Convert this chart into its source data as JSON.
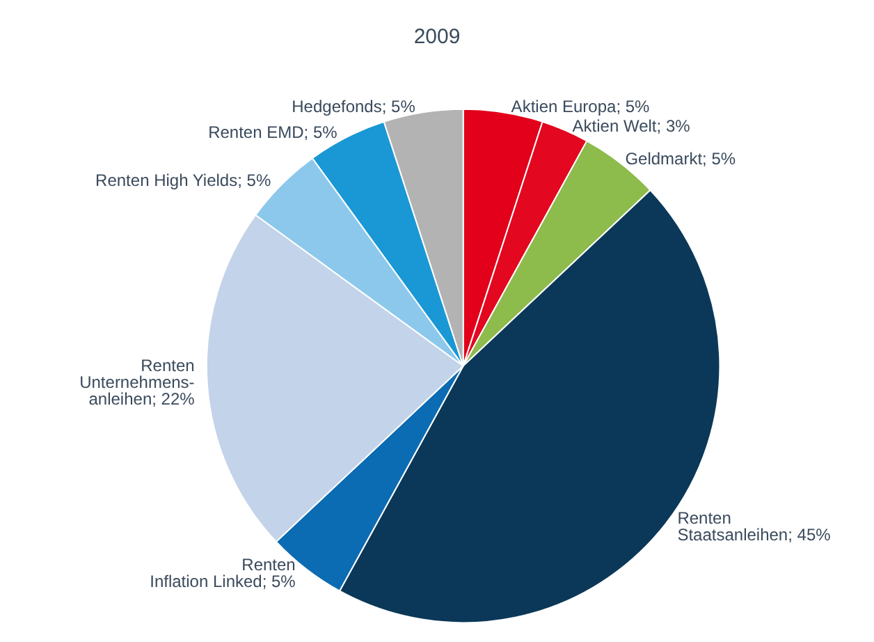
{
  "chart_data": {
    "type": "pie",
    "title": "2009",
    "categories": [
      "Aktien Europa",
      "Aktien Welt",
      "Geldmarkt",
      "Renten Staatsanleihen",
      "Renten Inflation Linked",
      "Renten Unternehmens-anleihen",
      "Renten High Yields",
      "Renten EMD",
      "Hedgefonds"
    ],
    "values": [
      5,
      3,
      5,
      45,
      5,
      22,
      5,
      5,
      5
    ],
    "value_labels": [
      "5%",
      "3%",
      "5%",
      "45%",
      "5%",
      "22%",
      "5%",
      "5%",
      "5%"
    ],
    "colors": [
      "#e2001a",
      "#e3071f",
      "#8dbb4c",
      "#0b3858",
      "#0b6bb3",
      "#c3d3e9",
      "#8cc8ec",
      "#1a98d5",
      "#b3b3b3"
    ],
    "legend": false
  }
}
